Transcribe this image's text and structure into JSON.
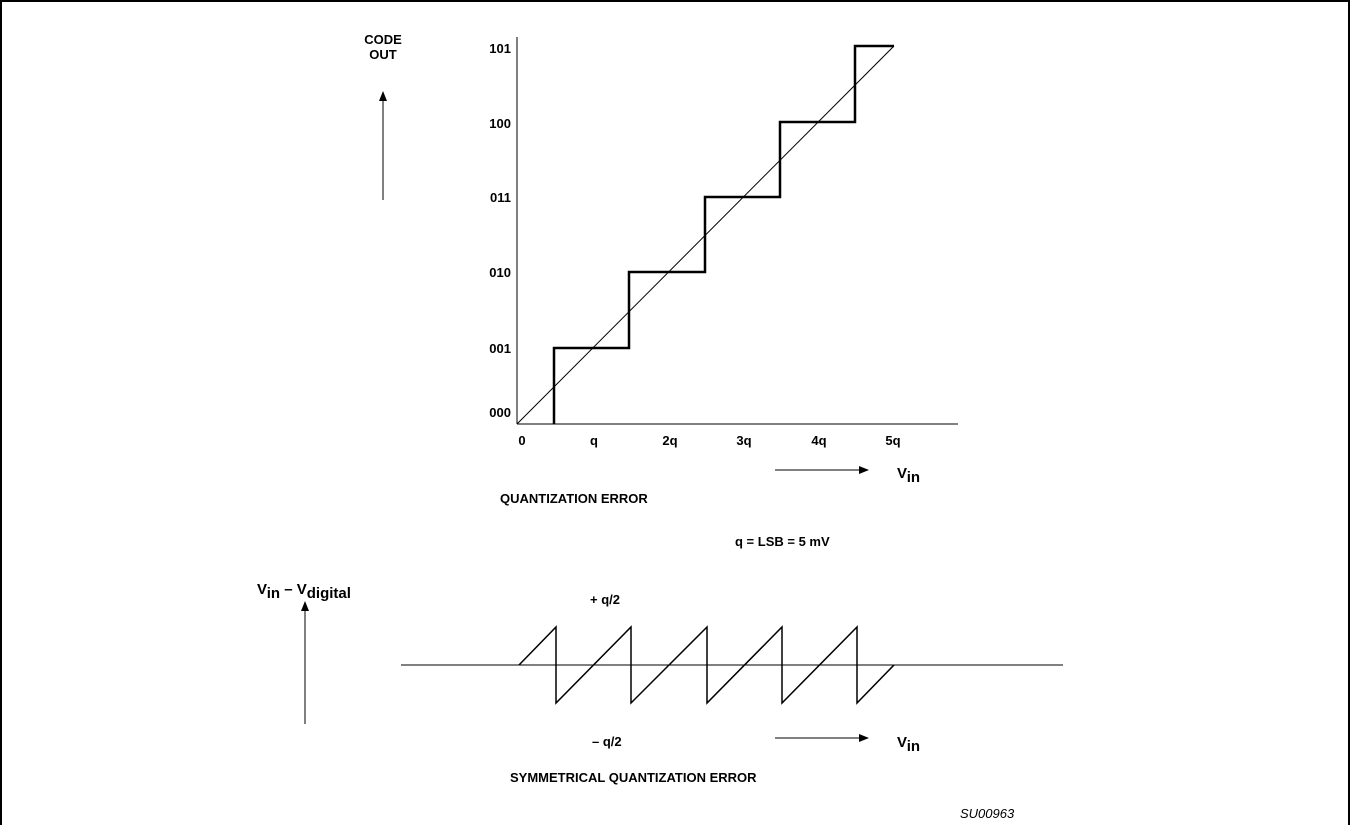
{
  "top_plot": {
    "y_axis_label_line1": "CODE",
    "y_axis_label_line2": "OUT",
    "y_ticks": [
      "000",
      "001",
      "010",
      "011",
      "100",
      "101"
    ],
    "x_ticks": [
      "0",
      "q",
      "2q",
      "3q",
      "4q",
      "5q"
    ],
    "x_axis_label_main": "V",
    "x_axis_label_sub": "in",
    "caption": "QUANTIZATION ERROR",
    "note": "q = LSB = 5 mV"
  },
  "bottom_plot": {
    "y_axis_label_main1": "V",
    "y_axis_label_sub1": "in",
    "y_axis_label_mid": " – V",
    "y_axis_label_sub2": "digital",
    "plus_label": "+ q/2",
    "minus_label": "– q/2",
    "x_axis_label_main": "V",
    "x_axis_label_sub": "in",
    "caption": "SYMMETRICAL QUANTIZATION ERROR"
  },
  "figure_id": "SU00963",
  "colors": {
    "ink": "#000000",
    "background": "#ffffff"
  }
}
